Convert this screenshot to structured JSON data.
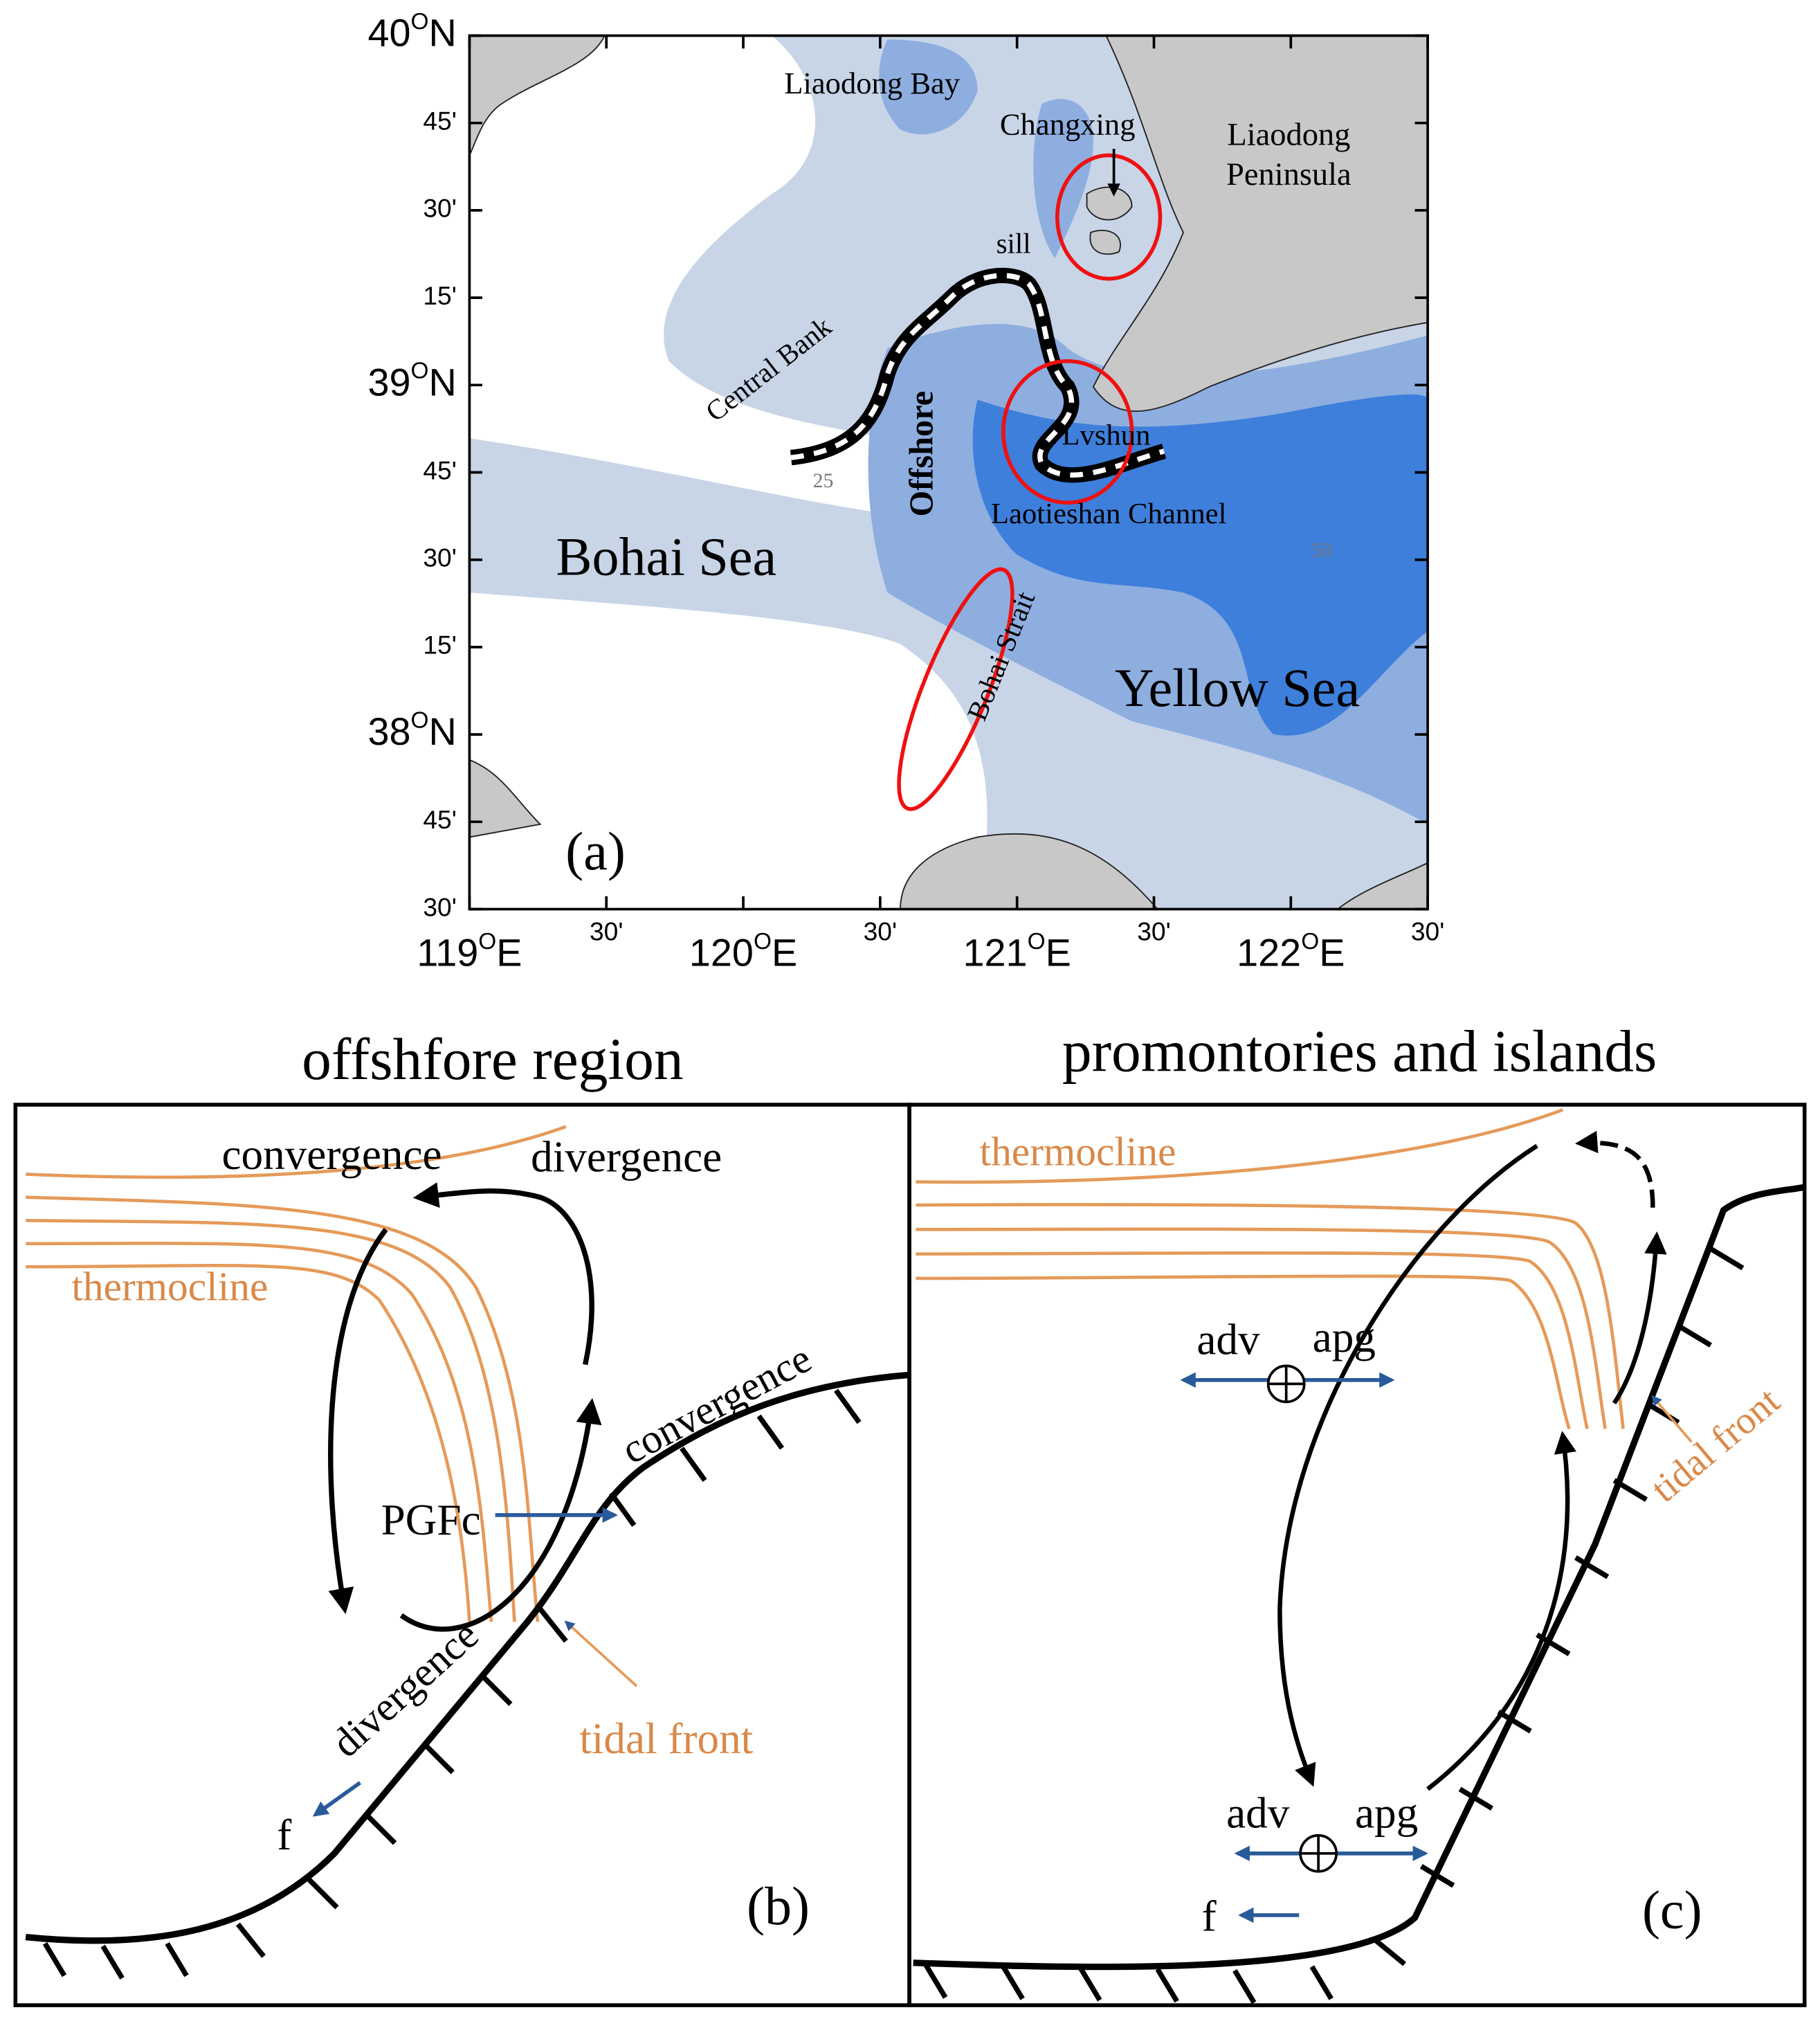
{
  "map": {
    "lat_labels": [
      {
        "text": "40",
        "sup": "O",
        "suffix": "N"
      },
      "45'",
      "30'",
      "15'",
      {
        "text": "39",
        "sup": "O",
        "suffix": "N"
      },
      "45'",
      "30'",
      "15'",
      {
        "text": "38",
        "sup": "O",
        "suffix": "N"
      },
      "45'",
      "30'"
    ],
    "lon_labels": [
      {
        "text": "119",
        "sup": "O",
        "suffix": "E"
      },
      "30'",
      {
        "text": "120",
        "sup": "O",
        "suffix": "E"
      },
      "30'",
      {
        "text": "121",
        "sup": "O",
        "suffix": "E"
      },
      "30'",
      {
        "text": "122",
        "sup": "O",
        "suffix": "E"
      },
      "30'"
    ],
    "labels": {
      "liaodong_bay": "Liaodong Bay",
      "changxing": "Changxing",
      "liaodong_peninsula_1": "Liaodong",
      "liaodong_peninsula_2": "Peninsula",
      "sill": "sill",
      "central_bank": "Central Bank",
      "offshore": "Offshore",
      "lvshun": "Lvshun",
      "laotieshan_channel": "Laotieshan Channel",
      "bohai_sea": "Bohai Sea",
      "bohai_strait": "Bohai Strait",
      "yellow_sea": "Yellow Sea",
      "contour_25": "25",
      "contour_50": "50"
    },
    "panel_label": "(a)"
  },
  "panel_b": {
    "title": "offshfore region",
    "convergence_top": "convergence",
    "divergence_top": "divergence",
    "thermocline": "thermocline",
    "pgfc": "PGFc",
    "convergence_slope": "convergence",
    "divergence_slope": "divergence",
    "tidal_front": "tidal front",
    "f": "f",
    "panel_label": "(b)"
  },
  "panel_c": {
    "title": "promontories and islands",
    "thermocline": "thermocline",
    "adv_top": "adv",
    "apg_top": "apg",
    "tidal_front": "tidal front",
    "adv_bottom": "adv",
    "apg_bottom": "apg",
    "f": "f",
    "panel_label": "(c)"
  }
}
